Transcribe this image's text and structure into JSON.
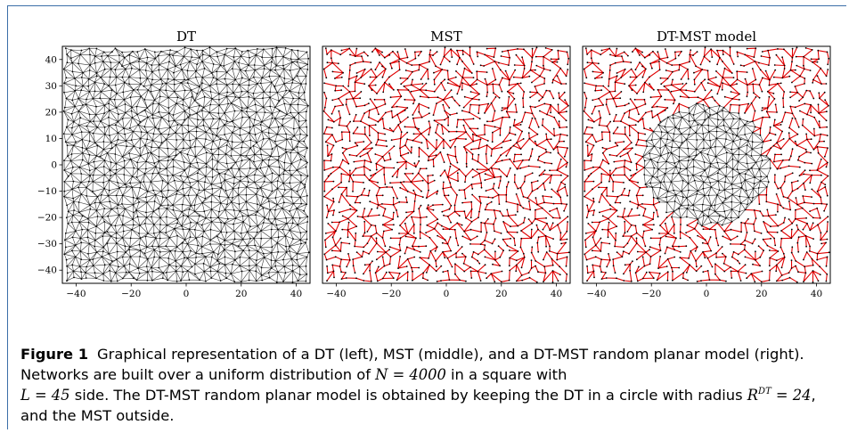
{
  "figure": {
    "panels": [
      {
        "id": "dt",
        "title": "DT"
      },
      {
        "id": "mst",
        "title": "MST"
      },
      {
        "id": "dtmst",
        "title": "DT-MST model"
      }
    ],
    "x_ticks": [
      "−40",
      "−20",
      "0",
      "20",
      "40"
    ],
    "y_ticks": [
      "40",
      "30",
      "20",
      "10",
      "0",
      "−10",
      "−20",
      "−30",
      "−40"
    ],
    "colors": {
      "dt_edges": "#333333",
      "mst_edges": "#e00000",
      "nodes": "#000000",
      "frame": "#3b6ea8"
    }
  },
  "caption": {
    "label": "Figure 1",
    "text_1": "Graphical representation of a DT (left), MST (middle), and a DT-MST random planar model (right). Networks are built over a uniform distribution of ",
    "n_expr": "N = 4000",
    "text_2": " in a square with ",
    "l_expr": "L = 45",
    "text_3": " side. The DT-MST random planar model is obtained by keeping the DT in a circle with radius ",
    "r_expr": "R",
    "r_sup": "DT",
    "r_val": " = 24",
    "text_4": ", and the MST outside."
  },
  "chart_data": [
    {
      "type": "network",
      "title": "DT",
      "xlim": [
        -45,
        45
      ],
      "ylim": [
        -45,
        45
      ],
      "x_ticks": [
        -40,
        -20,
        0,
        20,
        40
      ],
      "y_ticks": [
        40,
        30,
        20,
        10,
        0,
        -10,
        -20,
        -30,
        -40
      ]
    },
    {
      "type": "network",
      "title": "MST",
      "xlim": [
        -45,
        45
      ],
      "ylim": [
        -45,
        45
      ],
      "x_ticks": [
        -40,
        -20,
        0,
        20,
        40
      ]
    },
    {
      "type": "network",
      "title": "DT-MST model",
      "xlim": [
        -45,
        45
      ],
      "ylim": [
        -45,
        45
      ],
      "x_ticks": [
        -40,
        -20,
        0,
        20,
        40
      ],
      "dt_radius": 24
    }
  ]
}
